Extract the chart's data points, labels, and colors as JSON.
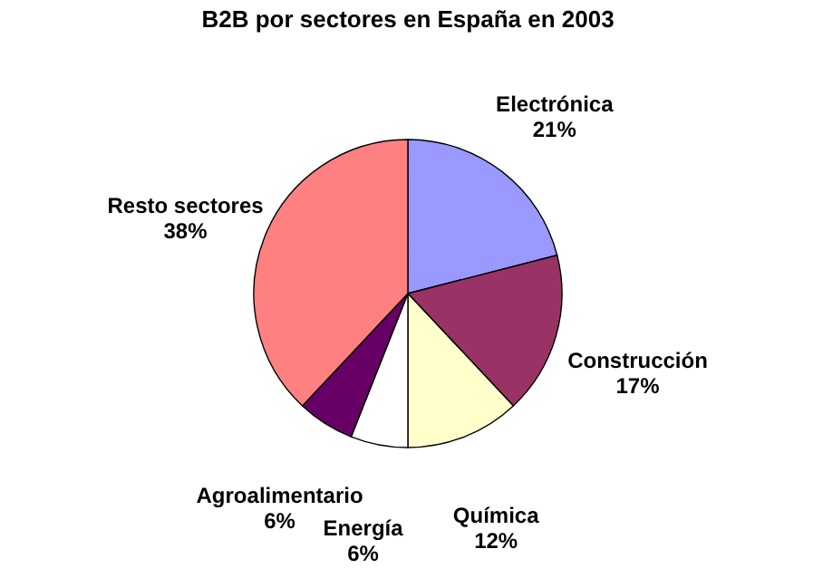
{
  "chart_data": {
    "type": "pie",
    "title": "B2B por sectores en España en 2003",
    "categories": [
      "Electrónica",
      "Construcción",
      "Química",
      "Energía",
      "Agroalimentario",
      "Resto sectores"
    ],
    "values": [
      21,
      17,
      12,
      6,
      6,
      38
    ],
    "colors": [
      "#9999ff",
      "#993366",
      "#ffffcc",
      "#ffffff",
      "#660066",
      "#ff8080"
    ],
    "value_labels": [
      "21%",
      "17%",
      "12%",
      "6%",
      "6%",
      "38%"
    ],
    "legend": false
  }
}
